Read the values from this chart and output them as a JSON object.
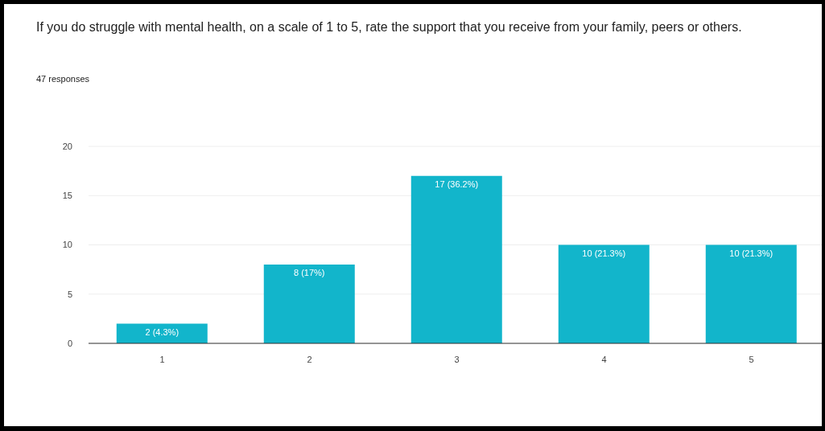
{
  "chart_data": {
    "type": "bar",
    "title": "If you do struggle with mental health, on a scale of 1 to 5, rate the support that you receive from your family, peers or others.",
    "subtitle": "47 responses",
    "categories": [
      "1",
      "2",
      "3",
      "4",
      "5"
    ],
    "values": [
      2,
      8,
      17,
      10,
      10
    ],
    "value_labels": [
      "2 (4.3%)",
      "8 (17%)",
      "17 (36.2%)",
      "10 (21.3%)",
      "10 (21.3%)"
    ],
    "color": "#12b5cb",
    "ylim": [
      0,
      20
    ],
    "yticks": [
      0,
      5,
      10,
      15,
      20
    ],
    "grid": "y",
    "legend": false
  }
}
